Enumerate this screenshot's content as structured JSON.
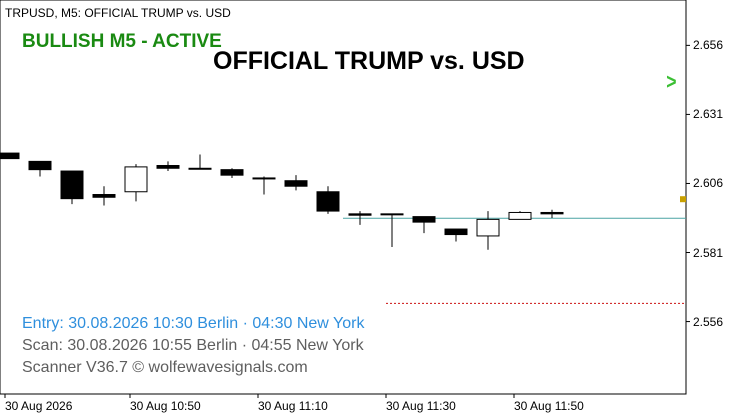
{
  "header": {
    "symbol_label": "TRPUSD, M5:  OFFICIAL TRUMP vs. USD",
    "status_label": "BULLISH M5 - ACTIVE",
    "big_title": "OFFICIAL TRUMP vs. USD",
    "signal_glyph": ">"
  },
  "info": {
    "entry": "Entry: 30.08.2026  10:30 Berlin · 04:30 New York",
    "scan": "Scan:  30.08.2026  10:55 Berlin · 04:55 New York",
    "version": "Scanner V36.7   © wolfewavesignals.com"
  },
  "colors": {
    "status_green": "#1a8a12",
    "entry_blue": "#2f8fdd",
    "muted_gray": "#5e5e5e",
    "price_line": "#4aa3a3",
    "target_line": "#cc1111",
    "signal_arrow": "#3cbf35"
  },
  "chart_data": {
    "type": "candlestick",
    "price_axis": {
      "ticks": [
        "2.656",
        "2.631",
        "2.606",
        "2.581",
        "2.556"
      ],
      "range": [
        2.5305,
        2.6717
      ]
    },
    "time_axis": {
      "ticks": [
        "30 Aug 2026",
        "30 Aug 10:50",
        "30 Aug 11:10",
        "30 Aug 11:30",
        "30 Aug 11:50"
      ]
    },
    "candles": [
      {
        "o": 2.617,
        "h": 2.617,
        "l": 2.615,
        "c": 2.615
      },
      {
        "o": 2.614,
        "h": 2.614,
        "l": 2.6085,
        "c": 2.611
      },
      {
        "o": 2.6105,
        "h": 2.6105,
        "l": 2.5985,
        "c": 2.6005
      },
      {
        "o": 2.602,
        "h": 2.605,
        "l": 2.598,
        "c": 2.601
      },
      {
        "o": 2.603,
        "h": 2.613,
        "l": 2.5995,
        "c": 2.612
      },
      {
        "o": 2.6125,
        "h": 2.614,
        "l": 2.6105,
        "c": 2.6115
      },
      {
        "o": 2.6115,
        "h": 2.6165,
        "l": 2.6115,
        "c": 2.6115
      },
      {
        "o": 2.611,
        "h": 2.6115,
        "l": 2.608,
        "c": 2.609
      },
      {
        "o": 2.608,
        "h": 2.6085,
        "l": 2.602,
        "c": 2.608
      },
      {
        "o": 2.607,
        "h": 2.609,
        "l": 2.6035,
        "c": 2.605
      },
      {
        "o": 2.603,
        "h": 2.605,
        "l": 2.595,
        "c": 2.596
      },
      {
        "o": 2.595,
        "h": 2.596,
        "l": 2.591,
        "c": 2.5945
      },
      {
        "o": 2.595,
        "h": 2.595,
        "l": 2.583,
        "c": 2.595
      },
      {
        "o": 2.594,
        "h": 2.594,
        "l": 2.588,
        "c": 2.592
      },
      {
        "o": 2.5895,
        "h": 2.5895,
        "l": 2.585,
        "c": 2.5875
      },
      {
        "o": 2.587,
        "h": 2.596,
        "l": 2.582,
        "c": 2.593
      },
      {
        "o": 2.593,
        "h": 2.596,
        "l": 2.593,
        "c": 2.5955
      },
      {
        "o": 2.5955,
        "h": 2.5965,
        "l": 2.5935,
        "c": 2.595
      }
    ],
    "current_price_line": 2.5934,
    "target_line": 2.5626,
    "grid": false
  }
}
